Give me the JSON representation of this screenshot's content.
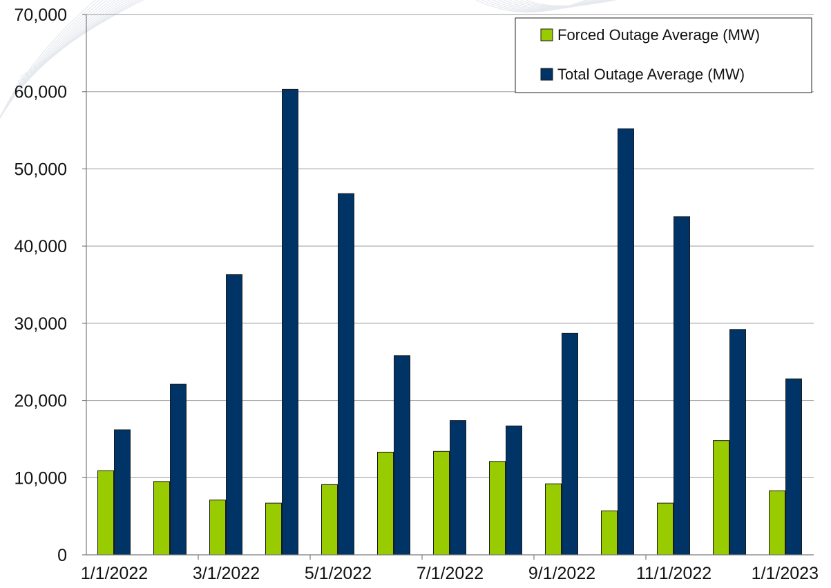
{
  "chart_data": {
    "type": "bar",
    "title": "",
    "xlabel": "",
    "ylabel": "",
    "ylim": [
      0,
      70000
    ],
    "y_ticks": [
      0,
      10000,
      20000,
      30000,
      40000,
      50000,
      60000,
      70000
    ],
    "y_tick_labels": [
      "0",
      "10,000",
      "20,000",
      "30,000",
      "40,000",
      "50,000",
      "60,000",
      "70,000"
    ],
    "categories": [
      "1/1/2022",
      "2/1/2022",
      "3/1/2022",
      "4/1/2022",
      "5/1/2022",
      "6/1/2022",
      "7/1/2022",
      "8/1/2022",
      "9/1/2022",
      "10/1/2022",
      "11/1/2022",
      "12/1/2022",
      "1/1/2023"
    ],
    "x_tick_labels": [
      "1/1/2022",
      "",
      "3/1/2022",
      "",
      "5/1/2022",
      "",
      "7/1/2022",
      "",
      "9/1/2022",
      "",
      "11/1/2022",
      "",
      "1/1/2023"
    ],
    "series": [
      {
        "name": "Forced Outage Average (MW)",
        "color": "#99cc00",
        "values": [
          10900,
          9500,
          7100,
          6700,
          9100,
          13300,
          13400,
          12100,
          9200,
          5700,
          6700,
          14800,
          8300
        ]
      },
      {
        "name": "Total Outage Average (MW)",
        "color": "#003366",
        "values": [
          16200,
          22100,
          36300,
          60300,
          46800,
          25800,
          17400,
          16700,
          28700,
          55200,
          43800,
          29200,
          22800
        ]
      }
    ],
    "grid": true,
    "legend_position": "top-right"
  }
}
